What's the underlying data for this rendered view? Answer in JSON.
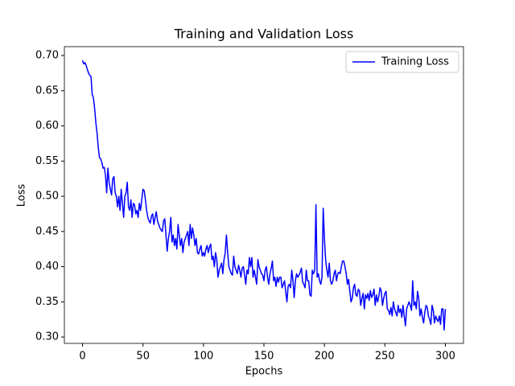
{
  "chart_data": {
    "type": "line",
    "title": "Training and Validation Loss",
    "x_label": "Epochs",
    "y_label": "Loss",
    "x": [
      0,
      1,
      2,
      3,
      4,
      5,
      6,
      7,
      8,
      9,
      10,
      11,
      12,
      13,
      14,
      15,
      16,
      17,
      18,
      19,
      20,
      21,
      22,
      23,
      24,
      25,
      26,
      27,
      28,
      29,
      30,
      31,
      32,
      33,
      34,
      35,
      36,
      37,
      38,
      39,
      40,
      41,
      42,
      43,
      44,
      45,
      46,
      47,
      48,
      49,
      50,
      51,
      52,
      53,
      54,
      55,
      56,
      57,
      58,
      59,
      60,
      61,
      62,
      63,
      64,
      65,
      66,
      67,
      68,
      69,
      70,
      71,
      72,
      73,
      74,
      75,
      76,
      77,
      78,
      79,
      80,
      81,
      82,
      83,
      84,
      85,
      86,
      87,
      88,
      89,
      90,
      91,
      92,
      93,
      94,
      95,
      96,
      97,
      98,
      99,
      100,
      101,
      102,
      103,
      104,
      105,
      106,
      107,
      108,
      109,
      110,
      111,
      112,
      113,
      114,
      115,
      116,
      117,
      118,
      119,
      120,
      121,
      122,
      123,
      124,
      125,
      126,
      127,
      128,
      129,
      130,
      131,
      132,
      133,
      134,
      135,
      136,
      137,
      138,
      139,
      140,
      141,
      142,
      143,
      144,
      145,
      146,
      147,
      148,
      149,
      150,
      151,
      152,
      153,
      154,
      155,
      156,
      157,
      158,
      159,
      160,
      161,
      162,
      163,
      164,
      165,
      166,
      167,
      168,
      169,
      170,
      171,
      172,
      173,
      174,
      175,
      176,
      177,
      178,
      179,
      180,
      181,
      182,
      183,
      184,
      185,
      186,
      187,
      188,
      189,
      190,
      191,
      192,
      193,
      194,
      195,
      196,
      197,
      198,
      199,
      200,
      201,
      202,
      203,
      204,
      205,
      206,
      207,
      208,
      209,
      210,
      211,
      212,
      213,
      214,
      215,
      216,
      217,
      218,
      219,
      220,
      221,
      222,
      223,
      224,
      225,
      226,
      227,
      228,
      229,
      230,
      231,
      232,
      233,
      234,
      235,
      236,
      237,
      238,
      239,
      240,
      241,
      242,
      243,
      244,
      245,
      246,
      247,
      248,
      249,
      250,
      251,
      252,
      253,
      254,
      255,
      256,
      257,
      258,
      259,
      260,
      261,
      262,
      263,
      264,
      265,
      266,
      267,
      268,
      269,
      270,
      271,
      272,
      273,
      274,
      275,
      276,
      277,
      278,
      279,
      280,
      281,
      282,
      283,
      284,
      285,
      286,
      287,
      288,
      289,
      290,
      291,
      292,
      293,
      294,
      295,
      296,
      297,
      298,
      299,
      300
    ],
    "series": [
      {
        "name": "Training Loss",
        "color": "#0000ff",
        "values": [
          0.693,
          0.688,
          0.69,
          0.686,
          0.68,
          0.675,
          0.672,
          0.67,
          0.645,
          0.64,
          0.625,
          0.605,
          0.59,
          0.57,
          0.555,
          0.553,
          0.548,
          0.54,
          0.541,
          0.53,
          0.505,
          0.54,
          0.52,
          0.51,
          0.502,
          0.525,
          0.528,
          0.505,
          0.5,
          0.485,
          0.5,
          0.48,
          0.51,
          0.49,
          0.47,
          0.5,
          0.505,
          0.52,
          0.485,
          0.48,
          0.495,
          0.47,
          0.49,
          0.488,
          0.475,
          0.48,
          0.47,
          0.49,
          0.48,
          0.495,
          0.51,
          0.508,
          0.495,
          0.48,
          0.47,
          0.465,
          0.462,
          0.472,
          0.475,
          0.46,
          0.47,
          0.478,
          0.465,
          0.46,
          0.455,
          0.452,
          0.45,
          0.465,
          0.468,
          0.445,
          0.422,
          0.44,
          0.45,
          0.47,
          0.435,
          0.445,
          0.43,
          0.44,
          0.425,
          0.46,
          0.445,
          0.43,
          0.44,
          0.42,
          0.435,
          0.44,
          0.445,
          0.45,
          0.43,
          0.46,
          0.44,
          0.455,
          0.445,
          0.43,
          0.44,
          0.42,
          0.418,
          0.425,
          0.43,
          0.415,
          0.42,
          0.415,
          0.425,
          0.43,
          0.42,
          0.428,
          0.432,
          0.41,
          0.415,
          0.4,
          0.42,
          0.41,
          0.385,
          0.395,
          0.4,
          0.405,
          0.39,
          0.41,
          0.42,
          0.445,
          0.42,
          0.4,
          0.395,
          0.39,
          0.388,
          0.415,
          0.4,
          0.395,
          0.39,
          0.402,
          0.395,
          0.385,
          0.398,
          0.4,
          0.388,
          0.375,
          0.395,
          0.39,
          0.413,
          0.4,
          0.413,
          0.385,
          0.395,
          0.385,
          0.375,
          0.41,
          0.4,
          0.395,
          0.39,
          0.388,
          0.38,
          0.395,
          0.4,
          0.385,
          0.375,
          0.39,
          0.398,
          0.408,
          0.38,
          0.385,
          0.372,
          0.385,
          0.378,
          0.385,
          0.385,
          0.37,
          0.375,
          0.38,
          0.365,
          0.35,
          0.372,
          0.375,
          0.37,
          0.395,
          0.38,
          0.356,
          0.38,
          0.39,
          0.385,
          0.388,
          0.392,
          0.398,
          0.378,
          0.375,
          0.37,
          0.395,
          0.38,
          0.38,
          0.36,
          0.358,
          0.395,
          0.39,
          0.395,
          0.488,
          0.385,
          0.39,
          0.38,
          0.375,
          0.385,
          0.483,
          0.44,
          0.41,
          0.395,
          0.385,
          0.405,
          0.38,
          0.375,
          0.38,
          0.39,
          0.395,
          0.38,
          0.39,
          0.392,
          0.39,
          0.4,
          0.408,
          0.408,
          0.4,
          0.39,
          0.375,
          0.382,
          0.365,
          0.35,
          0.355,
          0.37,
          0.375,
          0.36,
          0.358,
          0.368,
          0.365,
          0.345,
          0.355,
          0.362,
          0.34,
          0.36,
          0.355,
          0.362,
          0.352,
          0.366,
          0.356,
          0.36,
          0.368,
          0.345,
          0.36,
          0.35,
          0.358,
          0.37,
          0.365,
          0.345,
          0.355,
          0.362,
          0.365,
          0.34,
          0.338,
          0.332,
          0.342,
          0.33,
          0.35,
          0.34,
          0.335,
          0.33,
          0.345,
          0.335,
          0.34,
          0.328,
          0.345,
          0.33,
          0.316,
          0.34,
          0.345,
          0.35,
          0.345,
          0.338,
          0.38,
          0.345,
          0.35,
          0.34,
          0.365,
          0.355,
          0.33,
          0.34,
          0.328,
          0.32,
          0.335,
          0.345,
          0.342,
          0.33,
          0.325,
          0.318,
          0.345,
          0.338,
          0.32,
          0.33,
          0.325,
          0.322,
          0.33,
          0.318,
          0.34,
          0.34,
          0.31,
          0.34
        ]
      }
    ],
    "xlim": [
      -15,
      315
    ],
    "ylim": [
      0.291,
      0.7126
    ],
    "xticks": [
      0,
      50,
      100,
      150,
      200,
      250,
      300
    ],
    "yticks": [
      {
        "value": 0.3,
        "label": "0.30"
      },
      0.35,
      {
        "value": 0.4,
        "label": "0.40"
      },
      0.45,
      {
        "value": 0.5,
        "label": "0.50"
      },
      0.55,
      {
        "value": 0.6,
        "label": "0.60"
      },
      0.65,
      {
        "value": 0.7,
        "label": "0.70"
      }
    ],
    "legend": "upper right",
    "grid": false
  }
}
